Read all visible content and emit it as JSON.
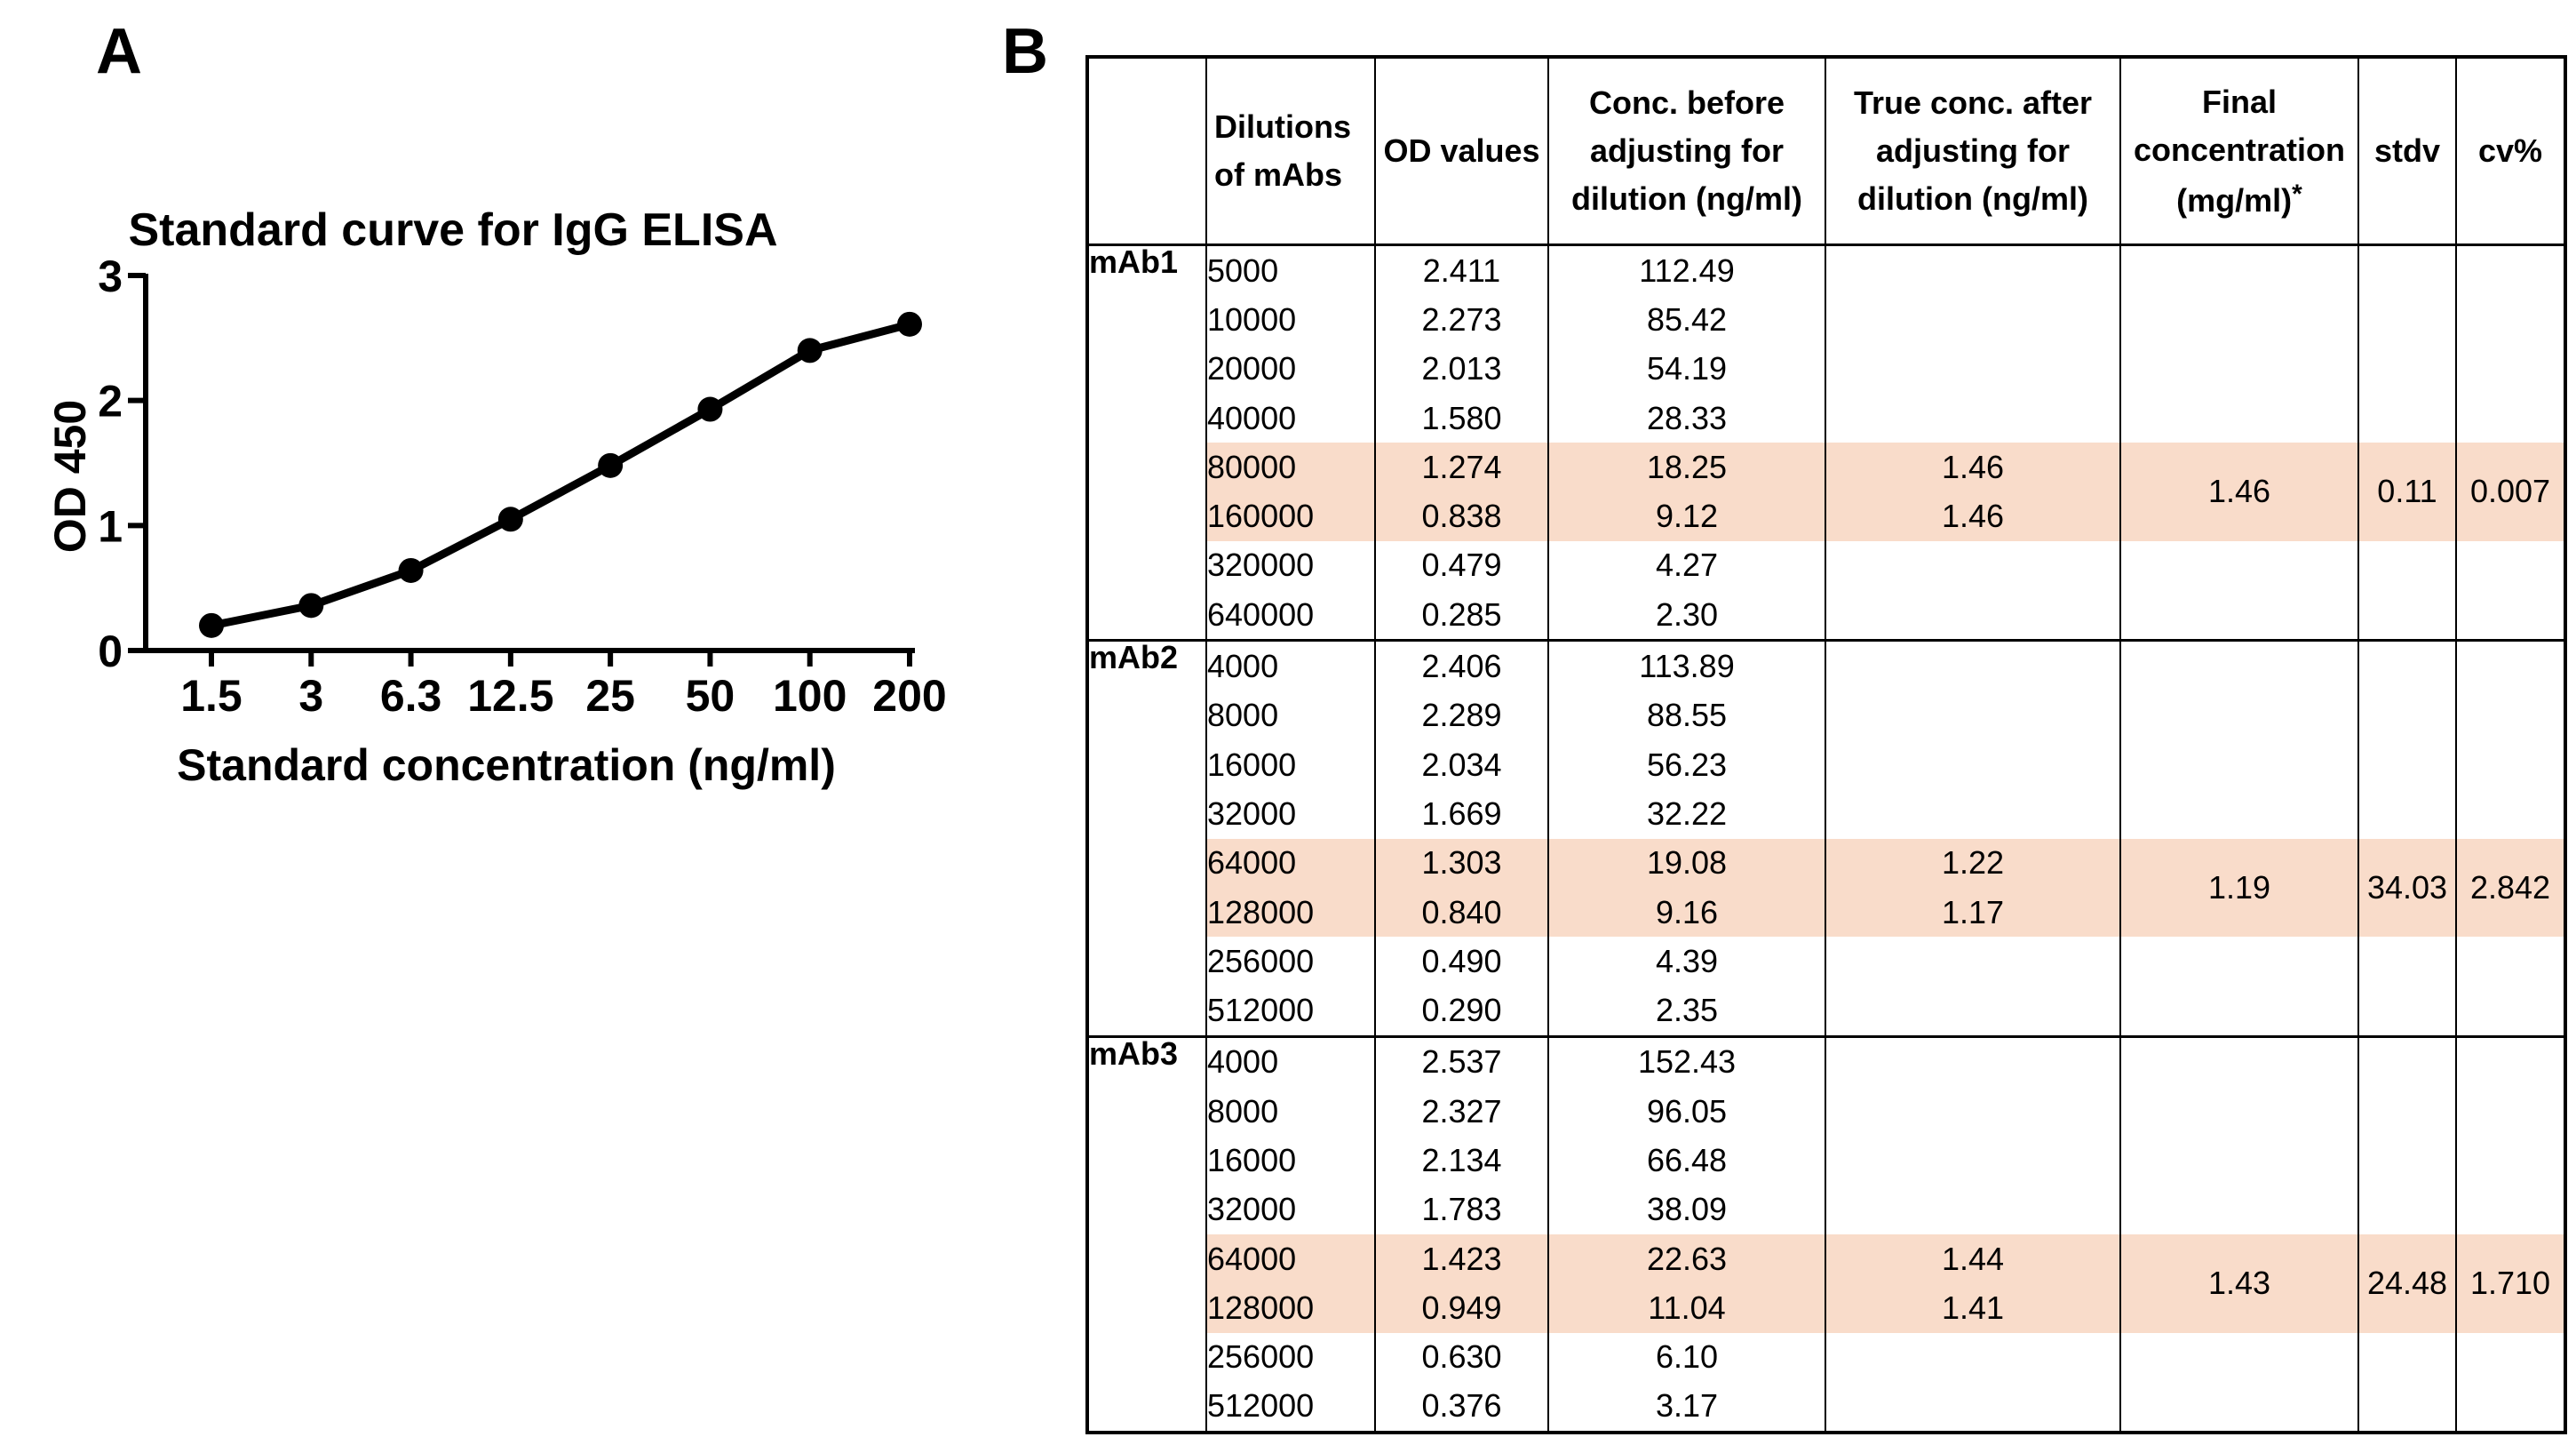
{
  "panels": {
    "a_label": "A",
    "b_label": "B"
  },
  "chart_data": {
    "type": "line",
    "title": "Standard curve for IgG ELISA",
    "xlabel": "Standard concentration (ng/ml)",
    "ylabel": "OD 450",
    "x": [
      "1.5",
      "3",
      "6.3",
      "12.5",
      "25",
      "50",
      "100",
      "200"
    ],
    "series": [
      {
        "values": [
          0.2,
          0.36,
          0.64,
          1.05,
          1.48,
          1.93,
          2.4,
          2.61
        ]
      }
    ],
    "yticks": [
      "0",
      "1",
      "2",
      "3"
    ],
    "ylim": [
      0,
      3
    ],
    "grid": false,
    "line_color": "#000000",
    "marker": "circle"
  },
  "table": {
    "headers": {
      "group": "",
      "dilutions": [
        "Dilutions",
        "of mAbs"
      ],
      "od": [
        "OD values"
      ],
      "conc_before": [
        "Conc. before",
        "adjusting for",
        "dilution (ng/ml)"
      ],
      "true_conc": [
        "True conc. after",
        "adjusting for",
        "dilution (ng/ml)"
      ],
      "final_conc": [
        "Final",
        "concentration",
        "(mg/ml)"
      ],
      "final_star": "*",
      "stdv": [
        "stdv"
      ],
      "cv": [
        "cv%"
      ]
    },
    "highlight_color": "#f9dcca",
    "groups": [
      {
        "name": "mAb1",
        "final": "1.46",
        "stdv": "0.11",
        "cv": "0.007",
        "rows": [
          {
            "dil": "5000",
            "od": "2.411",
            "conc": "112.49",
            "true": ""
          },
          {
            "dil": "10000",
            "od": "2.273",
            "conc": "85.42",
            "true": ""
          },
          {
            "dil": "20000",
            "od": "2.013",
            "conc": "54.19",
            "true": ""
          },
          {
            "dil": "40000",
            "od": "1.580",
            "conc": "28.33",
            "true": ""
          },
          {
            "dil": "80000",
            "od": "1.274",
            "conc": "18.25",
            "true": "1.46"
          },
          {
            "dil": "160000",
            "od": "0.838",
            "conc": "9.12",
            "true": "1.46"
          },
          {
            "dil": "320000",
            "od": "0.479",
            "conc": "4.27",
            "true": ""
          },
          {
            "dil": "640000",
            "od": "0.285",
            "conc": "2.30",
            "true": ""
          }
        ]
      },
      {
        "name": "mAb2",
        "final": "1.19",
        "stdv": "34.03",
        "cv": "2.842",
        "rows": [
          {
            "dil": "4000",
            "od": "2.406",
            "conc": "113.89",
            "true": ""
          },
          {
            "dil": "8000",
            "od": "2.289",
            "conc": "88.55",
            "true": ""
          },
          {
            "dil": "16000",
            "od": "2.034",
            "conc": "56.23",
            "true": ""
          },
          {
            "dil": "32000",
            "od": "1.669",
            "conc": "32.22",
            "true": ""
          },
          {
            "dil": "64000",
            "od": "1.303",
            "conc": "19.08",
            "true": "1.22"
          },
          {
            "dil": "128000",
            "od": "0.840",
            "conc": "9.16",
            "true": "1.17"
          },
          {
            "dil": "256000",
            "od": "0.490",
            "conc": "4.39",
            "true": ""
          },
          {
            "dil": "512000",
            "od": "0.290",
            "conc": "2.35",
            "true": ""
          }
        ]
      },
      {
        "name": "mAb3",
        "final": "1.43",
        "stdv": "24.48",
        "cv": "1.710",
        "rows": [
          {
            "dil": "4000",
            "od": "2.537",
            "conc": "152.43",
            "true": ""
          },
          {
            "dil": "8000",
            "od": "2.327",
            "conc": "96.05",
            "true": ""
          },
          {
            "dil": "16000",
            "od": "2.134",
            "conc": "66.48",
            "true": ""
          },
          {
            "dil": "32000",
            "od": "1.783",
            "conc": "38.09",
            "true": ""
          },
          {
            "dil": "64000",
            "od": "1.423",
            "conc": "22.63",
            "true": "1.44"
          },
          {
            "dil": "128000",
            "od": "0.949",
            "conc": "11.04",
            "true": "1.41"
          },
          {
            "dil": "256000",
            "od": "0.630",
            "conc": "6.10",
            "true": ""
          },
          {
            "dil": "512000",
            "od": "0.376",
            "conc": "3.17",
            "true": ""
          }
        ]
      }
    ]
  }
}
